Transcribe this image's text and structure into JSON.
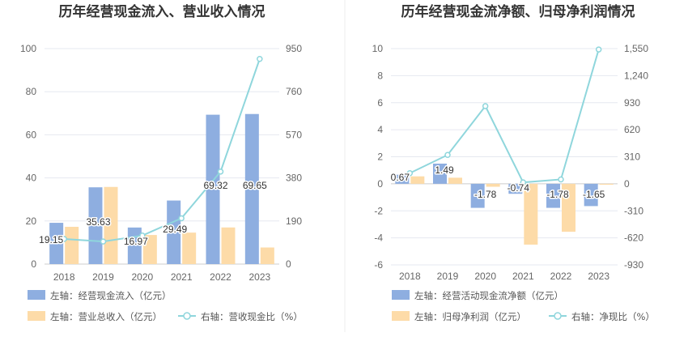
{
  "chart_data": [
    {
      "type": "bar+line",
      "title": "历年经营现金流入、营业收入情况",
      "categories": [
        "2018",
        "2019",
        "2020",
        "2021",
        "2022",
        "2023"
      ],
      "left_axis": {
        "ticks": [
          0,
          20,
          40,
          60,
          80,
          100
        ],
        "ylim": [
          0,
          100
        ]
      },
      "right_axis": {
        "ticks": [
          0,
          190,
          380,
          570,
          760,
          950
        ],
        "ylim": [
          0,
          950
        ]
      },
      "series": [
        {
          "name": "左轴：经营现金流入（亿元）",
          "kind": "bar",
          "axis": "left",
          "color": "#8eaee0",
          "values": [
            19.15,
            35.63,
            16.97,
            29.49,
            69.32,
            69.65
          ],
          "show_labels": true
        },
        {
          "name": "左轴：营业总收入（亿元）",
          "kind": "bar",
          "axis": "left",
          "color": "#fddba8",
          "values": [
            17.3,
            35.8,
            13.5,
            14.6,
            17.0,
            7.7
          ],
          "show_labels": false
        },
        {
          "name": "右轴：营收现金比（%）",
          "kind": "line",
          "axis": "right",
          "color": "#8fd6dc",
          "values": [
            110.7,
            99.5,
            125.7,
            202.0,
            407.8,
            904.5
          ]
        }
      ]
    },
    {
      "type": "bar+line",
      "title": "历年经营现金流净额、归母净利润情况",
      "categories": [
        "2018",
        "2019",
        "2020",
        "2021",
        "2022",
        "2023"
      ],
      "left_axis": {
        "ticks": [
          -6,
          -4,
          -2,
          0,
          2,
          4,
          6,
          8,
          10
        ],
        "ylim": [
          -6,
          10
        ]
      },
      "right_axis": {
        "ticks": [
          -930,
          -620,
          -310,
          0,
          310,
          620,
          930,
          1240,
          1550
        ],
        "ylim": [
          -930,
          1550
        ],
        "tick_labels": [
          "-930",
          "-620",
          "-310",
          "0",
          "310",
          "620",
          "930",
          "1,240",
          "1,550"
        ]
      },
      "series": [
        {
          "name": "左轴：经营活动现金流净额（亿元）",
          "kind": "bar",
          "axis": "left",
          "color": "#8eaee0",
          "values": [
            0.67,
            1.49,
            -1.78,
            -0.74,
            -1.78,
            -1.65
          ],
          "show_labels": true
        },
        {
          "name": "左轴：归母净利润（亿元）",
          "kind": "bar",
          "axis": "left",
          "color": "#fddba8",
          "values": [
            0.55,
            0.45,
            -0.22,
            -4.5,
            -3.55,
            -0.07
          ],
          "show_labels": false
        },
        {
          "name": "右轴：净现比（%）",
          "kind": "line",
          "axis": "right",
          "color": "#8fd6dc",
          "values": [
            122,
            331,
            890,
            16,
            50,
            1540
          ]
        }
      ]
    }
  ]
}
